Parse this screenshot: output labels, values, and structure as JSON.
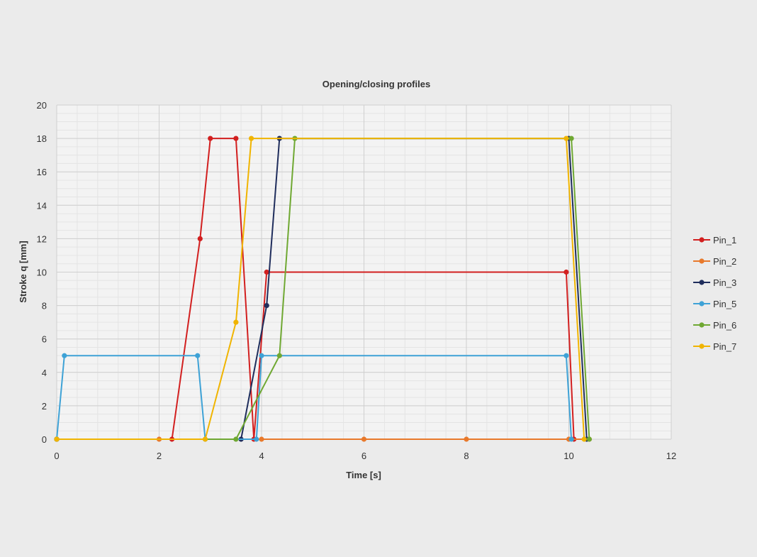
{
  "chart_data": {
    "type": "line",
    "title": "Opening/closing profiles",
    "xlabel": "Time  [s]",
    "ylabel": "Stroke q  [mm]",
    "xlim": [
      0,
      12
    ],
    "ylim": [
      0,
      20
    ],
    "xticks": [
      0,
      2,
      4,
      6,
      8,
      10,
      12
    ],
    "yticks": [
      0,
      2,
      4,
      6,
      8,
      10,
      12,
      14,
      16,
      18,
      20
    ],
    "grid": true,
    "legend_position": "right",
    "series": [
      {
        "name": "Pin_1",
        "color": "#d21f1f",
        "points": [
          [
            0,
            0
          ],
          [
            2.25,
            0
          ],
          [
            2.8,
            12
          ],
          [
            3.0,
            18
          ],
          [
            3.5,
            18
          ],
          [
            3.85,
            0
          ],
          [
            4.1,
            10
          ],
          [
            9.95,
            10
          ],
          [
            10.1,
            0
          ]
        ]
      },
      {
        "name": "Pin_2",
        "color": "#e8792b",
        "points": [
          [
            0,
            0
          ],
          [
            2,
            0
          ],
          [
            4,
            0
          ],
          [
            6,
            0
          ],
          [
            8,
            0
          ],
          [
            10,
            0
          ],
          [
            10.4,
            0
          ]
        ]
      },
      {
        "name": "Pin_3",
        "color": "#1f2d5c",
        "points": [
          [
            0,
            0
          ],
          [
            3.6,
            0
          ],
          [
            4.1,
            8
          ],
          [
            4.35,
            18
          ],
          [
            10.0,
            18
          ],
          [
            10.35,
            0
          ]
        ]
      },
      {
        "name": "Pin_5",
        "color": "#3ea2d6",
        "points": [
          [
            0,
            0
          ],
          [
            0.15,
            5
          ],
          [
            2.75,
            5
          ],
          [
            2.9,
            0
          ],
          [
            3.9,
            0
          ],
          [
            4.0,
            5
          ],
          [
            9.95,
            5
          ],
          [
            10.05,
            0
          ]
        ]
      },
      {
        "name": "Pin_6",
        "color": "#6fa832",
        "points": [
          [
            0,
            0
          ],
          [
            3.5,
            0
          ],
          [
            4.35,
            5
          ],
          [
            4.65,
            18
          ],
          [
            10.05,
            18
          ],
          [
            10.4,
            0
          ]
        ]
      },
      {
        "name": "Pin_7",
        "color": "#f0b400",
        "points": [
          [
            0,
            0
          ],
          [
            2.9,
            0
          ],
          [
            3.5,
            7
          ],
          [
            3.8,
            18
          ],
          [
            9.95,
            18
          ],
          [
            10.3,
            0
          ]
        ]
      }
    ]
  }
}
